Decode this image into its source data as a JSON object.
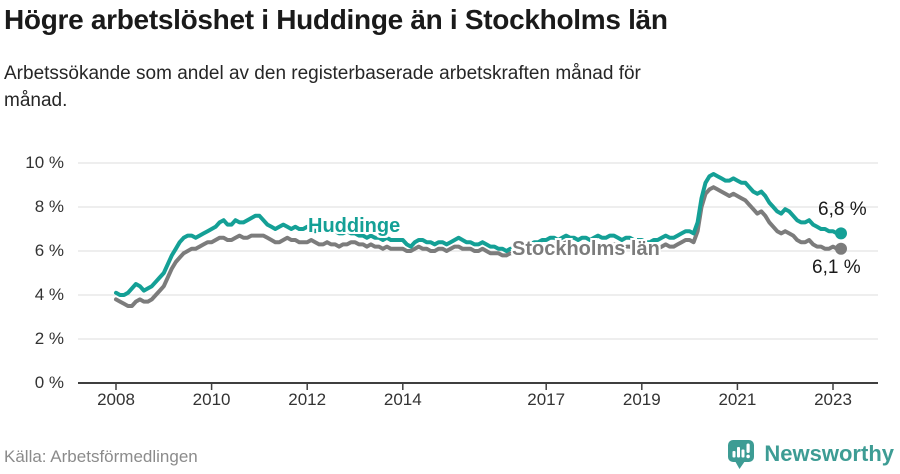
{
  "header": {
    "title": "Högre arbetslöshet i Huddinge än i Stockholms län",
    "subtitle": "Arbetssökande som andel av den registerbaserade arbetskraften månad för månad."
  },
  "footer": {
    "source": "Källa: Arbetsförmedlingen",
    "brand_name": "Newsworthy",
    "brand_color": "#3D9C94",
    "logo_icon": "bar-chart-speech-bubble"
  },
  "chart_data": {
    "type": "line",
    "title": "Högre arbetslöshet i Huddinge än i Stockholms län",
    "subtitle": "Arbetssökande som andel av den registerbaserade arbetskraften månad för månad.",
    "xlabel": "",
    "ylabel": "",
    "x_start_year": 2008,
    "x_interval": "monthly",
    "x_end": "2023-03",
    "xlim": [
      2007.2,
      2023.95
    ],
    "ylim": [
      0,
      10
    ],
    "grid": "horizontal",
    "legend": "inline-series-labels",
    "x_tick_years": [
      2008,
      2010,
      2012,
      2014,
      2017,
      2019,
      2021,
      2023
    ],
    "x_tick_labels": [
      "2008",
      "2010",
      "2012",
      "2014",
      "2017",
      "2019",
      "2021",
      "2023"
    ],
    "y_tick_values": [
      0,
      2,
      4,
      6,
      8,
      10
    ],
    "y_tick_labels": [
      "0 %",
      "2 %",
      "4 %",
      "6 %",
      "8 %",
      "10 %"
    ],
    "colors": {
      "huddinge": "#14A096",
      "stockholm": "#7C7C7C",
      "grid": "#DCDCDC",
      "axis": "#3F3F3F"
    },
    "series": [
      {
        "name": "Huddinge",
        "color": "#14A096",
        "end_label": "6,8 %",
        "end_value": 6.8,
        "values": [
          4.1,
          4.0,
          4.0,
          4.1,
          4.3,
          4.5,
          4.4,
          4.2,
          4.3,
          4.4,
          4.6,
          4.8,
          5.0,
          5.4,
          5.8,
          6.1,
          6.4,
          6.6,
          6.7,
          6.7,
          6.6,
          6.7,
          6.8,
          6.9,
          7.0,
          7.1,
          7.3,
          7.4,
          7.2,
          7.2,
          7.4,
          7.3,
          7.3,
          7.4,
          7.5,
          7.6,
          7.6,
          7.4,
          7.2,
          7.1,
          7.0,
          7.1,
          7.2,
          7.1,
          7.0,
          7.1,
          7.0,
          7.0,
          7.1,
          7.0,
          6.9,
          7.0,
          6.9,
          6.9,
          7.0,
          6.9,
          6.8,
          6.8,
          6.9,
          6.8,
          6.8,
          6.7,
          6.7,
          6.6,
          6.7,
          6.6,
          6.6,
          6.5,
          6.6,
          6.5,
          6.5,
          6.5,
          6.5,
          6.3,
          6.2,
          6.4,
          6.5,
          6.5,
          6.4,
          6.4,
          6.3,
          6.4,
          6.4,
          6.3,
          6.4,
          6.5,
          6.6,
          6.5,
          6.4,
          6.4,
          6.3,
          6.3,
          6.4,
          6.3,
          6.2,
          6.2,
          6.1,
          6.1,
          6.0,
          6.1,
          6.1,
          6.2,
          6.3,
          6.2,
          6.3,
          6.4,
          6.4,
          6.5,
          6.5,
          6.6,
          6.6,
          6.5,
          6.6,
          6.7,
          6.6,
          6.6,
          6.5,
          6.6,
          6.6,
          6.5,
          6.6,
          6.7,
          6.6,
          6.6,
          6.7,
          6.7,
          6.6,
          6.5,
          6.6,
          6.6,
          6.5,
          6.5,
          6.5,
          6.4,
          6.4,
          6.5,
          6.5,
          6.6,
          6.7,
          6.6,
          6.6,
          6.7,
          6.8,
          6.9,
          6.9,
          6.8,
          7.3,
          8.4,
          9.1,
          9.4,
          9.5,
          9.4,
          9.3,
          9.2,
          9.2,
          9.3,
          9.2,
          9.1,
          9.1,
          8.9,
          8.7,
          8.6,
          8.7,
          8.5,
          8.2,
          8.0,
          7.8,
          7.7,
          7.9,
          7.8,
          7.6,
          7.4,
          7.3,
          7.3,
          7.4,
          7.2,
          7.1,
          7.0,
          7.0,
          6.9,
          6.9,
          6.8,
          6.8
        ]
      },
      {
        "name": "Stockholms län",
        "color": "#7C7C7C",
        "end_label": "6,1 %",
        "end_value": 6.1,
        "values": [
          3.8,
          3.7,
          3.6,
          3.5,
          3.5,
          3.7,
          3.8,
          3.7,
          3.7,
          3.8,
          4.0,
          4.2,
          4.4,
          4.8,
          5.2,
          5.5,
          5.7,
          5.9,
          6.0,
          6.1,
          6.1,
          6.2,
          6.3,
          6.4,
          6.4,
          6.5,
          6.6,
          6.6,
          6.5,
          6.5,
          6.6,
          6.7,
          6.6,
          6.6,
          6.7,
          6.7,
          6.7,
          6.7,
          6.6,
          6.5,
          6.4,
          6.4,
          6.5,
          6.6,
          6.5,
          6.5,
          6.4,
          6.4,
          6.4,
          6.5,
          6.4,
          6.3,
          6.3,
          6.4,
          6.3,
          6.3,
          6.2,
          6.3,
          6.3,
          6.4,
          6.4,
          6.3,
          6.3,
          6.2,
          6.3,
          6.2,
          6.2,
          6.1,
          6.2,
          6.1,
          6.1,
          6.1,
          6.1,
          6.0,
          6.0,
          6.1,
          6.2,
          6.1,
          6.1,
          6.0,
          6.0,
          6.1,
          6.1,
          6.0,
          6.1,
          6.2,
          6.2,
          6.1,
          6.1,
          6.1,
          6.0,
          6.0,
          6.1,
          6.0,
          5.9,
          5.9,
          5.9,
          5.8,
          5.8,
          5.9,
          5.9,
          6.0,
          6.0,
          5.9,
          6.0,
          6.1,
          6.1,
          6.2,
          6.2,
          6.3,
          6.3,
          6.2,
          6.3,
          6.4,
          6.3,
          6.3,
          6.2,
          6.3,
          6.3,
          6.2,
          6.3,
          6.3,
          6.3,
          6.2,
          6.3,
          6.3,
          6.3,
          6.2,
          6.2,
          6.2,
          6.1,
          6.1,
          6.1,
          6.1,
          6.0,
          6.1,
          6.1,
          6.2,
          6.3,
          6.2,
          6.2,
          6.3,
          6.4,
          6.5,
          6.5,
          6.4,
          6.9,
          8.0,
          8.6,
          8.8,
          8.9,
          8.8,
          8.7,
          8.6,
          8.5,
          8.6,
          8.5,
          8.4,
          8.3,
          8.1,
          7.9,
          7.7,
          7.8,
          7.6,
          7.3,
          7.1,
          6.9,
          6.8,
          6.9,
          6.8,
          6.7,
          6.5,
          6.4,
          6.4,
          6.5,
          6.3,
          6.2,
          6.2,
          6.1,
          6.1,
          6.2,
          6.1,
          6.1
        ]
      }
    ]
  }
}
